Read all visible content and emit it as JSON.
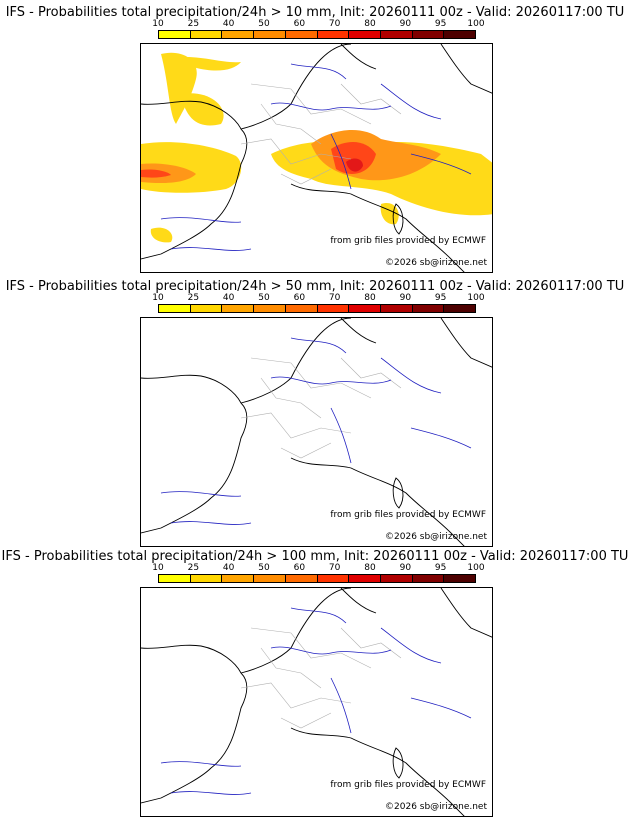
{
  "colorbar": {
    "ticks": [
      "10",
      "25",
      "40",
      "50",
      "60",
      "70",
      "80",
      "90",
      "95",
      "100"
    ],
    "colors": [
      "#ffff00",
      "#ffd700",
      "#ffa500",
      "#ff8c00",
      "#ff6a00",
      "#ff3300",
      "#e00000",
      "#b00000",
      "#800000",
      "#4d0000"
    ]
  },
  "panels": [
    {
      "title": "IFS - Probabilities total precipitation/24h > 10 mm, Init: 20260111 00z - Valid: 20260117:00 TU",
      "credit": "from grib files provided by ECMWF",
      "copyright": "©2026 sb@irizone.net"
    },
    {
      "title": "IFS - Probabilities total precipitation/24h > 50 mm, Init: 20260111 00z - Valid: 20260117:00 TU",
      "credit": "from grib files provided by ECMWF",
      "copyright": "©2026 sb@irizone.net"
    },
    {
      "title": "IFS - Probabilities total precipitation/24h > 100 mm, Init: 20260111 00z - Valid: 20260117:00 TU",
      "credit": "from grib files provided by ECMWF",
      "copyright": "©2026 sb@irizone.net"
    }
  ],
  "map_style": {
    "coast": "#000000",
    "rivers": "#2020c0",
    "regions": "#b0b0b0"
  }
}
